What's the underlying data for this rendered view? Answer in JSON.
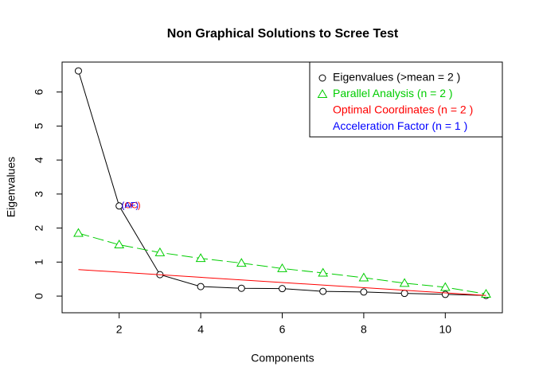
{
  "chart_data": {
    "type": "line",
    "title": "Non Graphical Solutions to Scree Test",
    "xlabel": "Components",
    "ylabel": "Eigenvalues",
    "x": [
      1,
      2,
      3,
      4,
      5,
      6,
      7,
      8,
      9,
      10,
      11
    ],
    "xlim": [
      0.6,
      11.4
    ],
    "xticks": [
      2,
      4,
      6,
      8,
      10
    ],
    "ylim": [
      -0.49,
      6.88
    ],
    "yticks": [
      0,
      1,
      2,
      3,
      4,
      5,
      6
    ],
    "legend_position": "top-right",
    "series": [
      {
        "name": "Eigenvalues (>mean  =  2 )",
        "color": "#000000",
        "marker": "circle",
        "line": "solid",
        "values": [
          6.62,
          2.65,
          0.63,
          0.28,
          0.23,
          0.22,
          0.14,
          0.12,
          0.08,
          0.05,
          0.02
        ]
      },
      {
        "name": "Parallel Analysis (n =  2 )",
        "color": "#00cd00",
        "marker": "triangle",
        "line": "dashed",
        "values": [
          1.85,
          1.51,
          1.28,
          1.11,
          0.97,
          0.81,
          0.68,
          0.54,
          0.38,
          0.26,
          0.06
        ]
      },
      {
        "name": "Optimal Coordinates (n =  2 )",
        "color": "#ff0000",
        "marker": "none",
        "line": "solid",
        "x": [
          1,
          11
        ],
        "values": [
          0.78,
          0.02
        ]
      },
      {
        "name": "Acceleration Factor (n =  1 )",
        "color": "#0000ff",
        "marker": "none",
        "line": "none",
        "x": [],
        "values": []
      }
    ],
    "annotations": [
      {
        "text": "(OC)",
        "x": 2,
        "y": 2.65,
        "color": "#ff0000"
      },
      {
        "text": "(AF)",
        "x": 2,
        "y": 2.65,
        "color": "#0000ff"
      }
    ]
  }
}
